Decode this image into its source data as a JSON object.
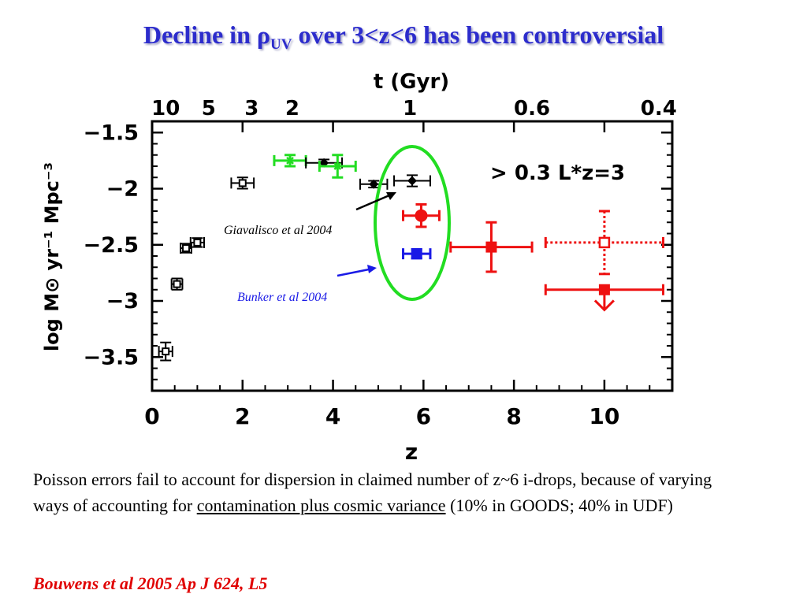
{
  "slide": {
    "title_part1": "Decline in ",
    "title_rho": "ρ",
    "title_sub": "UV",
    "title_part2": " over 3<z<6 has been controversial",
    "caption_part1": "Poisson errors fail to account for dispersion in claimed number of z~6 i-drops, because of varying ways of accounting for ",
    "caption_underlined": "contamination plus cosmic variance",
    "caption_part2": " (10% in GOODS; 40% in UDF)",
    "citation": "Bouwens et al 2005 Ap J 624, L5",
    "colors": {
      "title": "#2c2ccc",
      "citation": "#e00000",
      "ellipse": "#22dd22"
    }
  },
  "chart_data": {
    "type": "scatter",
    "xlabel": "z",
    "top_label": "t (Gyr)",
    "ylabel": "log M⊙ yr⁻¹ Mpc⁻³",
    "xlim": [
      0,
      11.5
    ],
    "ylim": [
      -3.8,
      -1.4
    ],
    "x_ticks": [
      "0",
      "2",
      "4",
      "6",
      "8",
      "10"
    ],
    "y_ticks": [
      "−1.5",
      "−2",
      "−2.5",
      "−3",
      "−3.5"
    ],
    "top_ticks": [
      {
        "label": "10",
        "z": 0.3
      },
      {
        "label": "5",
        "z": 1.25
      },
      {
        "label": "3",
        "z": 2.2
      },
      {
        "label": "2",
        "z": 3.1
      },
      {
        "label": "1",
        "z": 5.7
      },
      {
        "label": "0.6",
        "z": 8.4
      },
      {
        "label": "0.4",
        "z": 11.2
      }
    ],
    "annotation": "> 0.3 L*z=3",
    "labels": [
      {
        "text": "Giavalisco et al 2004",
        "color": "#000000"
      },
      {
        "text": "Bunker et al 2004",
        "color": "#1a1ae6"
      }
    ],
    "points": [
      {
        "z": 0.3,
        "y": -3.45,
        "xerr": 0.15,
        "yerr": 0.08,
        "color": "#000000",
        "marker": "open-square"
      },
      {
        "z": 0.55,
        "y": -2.85,
        "xerr": 0.12,
        "yerr": 0.05,
        "color": "#000000",
        "marker": "open-square"
      },
      {
        "z": 0.75,
        "y": -2.53,
        "xerr": 0.12,
        "yerr": 0.04,
        "color": "#000000",
        "marker": "open-square"
      },
      {
        "z": 1.0,
        "y": -2.48,
        "xerr": 0.15,
        "yerr": 0.04,
        "color": "#000000",
        "marker": "open-square"
      },
      {
        "z": 2.0,
        "y": -1.95,
        "xerr": 0.25,
        "yerr": 0.05,
        "color": "#000000",
        "marker": "open-square"
      },
      {
        "z": 3.05,
        "y": -1.75,
        "xerr": 0.35,
        "yerr": 0.05,
        "color": "#22dd22",
        "marker": "cross"
      },
      {
        "z": 3.8,
        "y": -1.77,
        "xerr": 0.4,
        "yerr": 0.03,
        "color": "#000000",
        "marker": "diamond"
      },
      {
        "z": 4.1,
        "y": -1.8,
        "xerr": 0.4,
        "yerr": 0.1,
        "color": "#22dd22",
        "marker": "cross"
      },
      {
        "z": 4.9,
        "y": -1.96,
        "xerr": 0.3,
        "yerr": 0.03,
        "color": "#000000",
        "marker": "diamond"
      },
      {
        "z": 5.75,
        "y": -1.93,
        "xerr": 0.4,
        "yerr": 0.05,
        "color": "#000000",
        "marker": "diamond"
      },
      {
        "z": 5.95,
        "y": -2.24,
        "xerr": 0.4,
        "yerr": 0.1,
        "color": "#ee1111",
        "marker": "filled-circle"
      },
      {
        "z": 5.85,
        "y": -2.58,
        "xerr": 0.3,
        "yerr": 0.04,
        "color": "#1a1ae6",
        "marker": "filled-square"
      },
      {
        "z": 7.5,
        "y": -2.52,
        "xerr": 0.9,
        "yerr": 0.22,
        "color": "#ee1111",
        "marker": "filled-square"
      },
      {
        "z": 10.0,
        "y": -2.48,
        "xerr": 1.3,
        "yerr": 0.28,
        "color": "#ee1111",
        "marker": "open-square-dotted"
      },
      {
        "z": 10.0,
        "y": -2.9,
        "xerr": 1.3,
        "yerr": 0,
        "color": "#ee1111",
        "marker": "upper-limit"
      }
    ]
  }
}
